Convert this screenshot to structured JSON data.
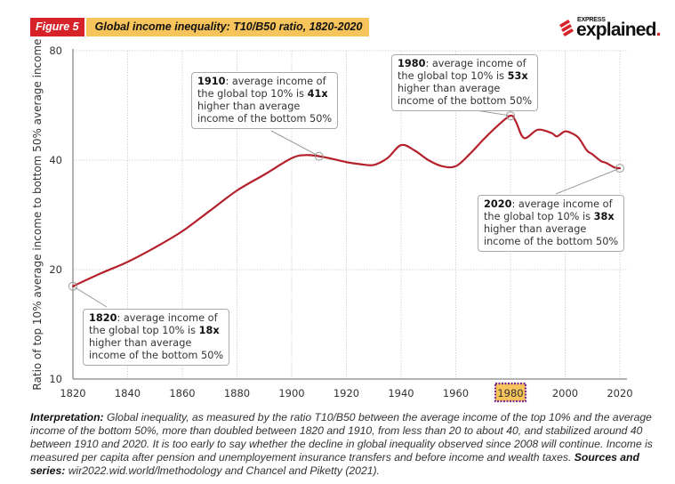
{
  "header": {
    "figure_label": "Figure 5",
    "figure_title": "Global income inequality: T10/B50 ratio, 1820-2020"
  },
  "logo": {
    "top": "EXPRESS",
    "main": "explained",
    "dot": "."
  },
  "colors": {
    "line": "#b5212b",
    "figure_label_bg": "#d6232a",
    "title_bg": "#f7c35b",
    "highlight_bg": "#f7c35b",
    "highlight_border": "#7b2d8e"
  },
  "chart_data": {
    "type": "line",
    "title": "Global income inequality: T10/B50 ratio, 1820-2020",
    "xlabel": "",
    "ylabel": "Ratio of top 10% average income to bottom 50% average income",
    "xlim": [
      1820,
      2020
    ],
    "ylim": [
      10,
      80
    ],
    "yscale": "log",
    "grid": true,
    "x_ticks": [
      1820,
      1840,
      1860,
      1880,
      1900,
      1920,
      1940,
      1960,
      1980,
      2000,
      2020
    ],
    "y_ticks": [
      10,
      20,
      40,
      80
    ],
    "highlighted_x_tick": 1980,
    "series": [
      {
        "name": "T10/B50 ratio",
        "x": [
          1820,
          1830,
          1840,
          1850,
          1860,
          1870,
          1880,
          1890,
          1900,
          1905,
          1910,
          1915,
          1920,
          1925,
          1930,
          1935,
          1940,
          1945,
          1950,
          1955,
          1960,
          1965,
          1970,
          1975,
          1980,
          1982,
          1985,
          1990,
          1995,
          1997,
          2000,
          2003,
          2005,
          2008,
          2010,
          2013,
          2015,
          2018,
          2020
        ],
        "values": [
          18,
          19.5,
          21,
          23,
          25.5,
          29,
          33,
          36.5,
          40.5,
          41.3,
          41,
          40.3,
          39.5,
          39,
          38.8,
          40.5,
          44,
          42.5,
          40,
          38.5,
          38.5,
          41.5,
          45.5,
          49.5,
          53,
          51,
          46,
          48.5,
          47.5,
          46.5,
          48,
          47.2,
          46,
          42.5,
          41.5,
          39.8,
          39.3,
          38.2,
          38
        ]
      }
    ],
    "annotations": [
      {
        "x": 1820,
        "value": 18,
        "year": "1820",
        "line1_rest": ": average income of",
        "line2_pre": "the global top 10% is ",
        "ratio": "18x",
        "line3": "higher than average",
        "line4": "income of the bottom 50%"
      },
      {
        "x": 1910,
        "value": 41,
        "year": "1910",
        "line1_rest": ": average income of",
        "line2_pre": "the global top 10% is ",
        "ratio": "41x",
        "line3": "higher than average",
        "line4": "income of the bottom 50%"
      },
      {
        "x": 1980,
        "value": 53,
        "year": "1980",
        "line1_rest": ": average income of",
        "line2_pre": "the global top 10% is ",
        "ratio": "53x",
        "line3": "higher than average",
        "line4": "income of the bottom 50%"
      },
      {
        "x": 2020,
        "value": 38,
        "year": "2020",
        "line1_rest": ": average income of",
        "line2_pre": "the global top 10% is ",
        "ratio": "38x",
        "line3": "higher than average",
        "line4": "income of the bottom 50%"
      }
    ]
  },
  "interpretation": {
    "label": "Interpretation:",
    "text": " Global inequality, as measured by the ratio T10/B50 between the average income of the top 10% and the average income of the bottom 50%, more than doubled between 1820 and 1910, from less than 20 to about 40, and stabilized around 40 between 1910 and 2020. It is too early to say whether the decline in global inequality observed since 2008 will continue. Income is measured per capita after pension and unemployement insurance transfers and before income and wealth taxes. ",
    "sources_label": "Sources and series:",
    "sources_text": " wir2022.wid.world/lmethodology and Chancel and Piketty (2021)."
  }
}
